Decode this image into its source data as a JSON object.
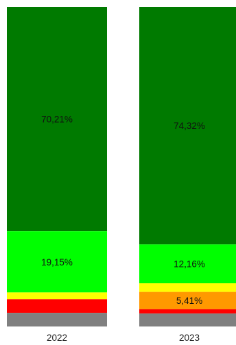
{
  "chart_data": {
    "type": "bar",
    "stacked": true,
    "percent": true,
    "categories": [
      "2022",
      "2023"
    ],
    "series": [
      {
        "color": "#007A00",
        "values": [
          70.21,
          74.32
        ],
        "labels": [
          "70,21%",
          "74,32%"
        ]
      },
      {
        "color": "#00FF00",
        "values": [
          19.15,
          12.16
        ],
        "labels": [
          "19,15%",
          "12,16%"
        ]
      },
      {
        "color": "#FFFF00",
        "values": [
          2.13,
          2.7
        ],
        "labels": [
          "",
          ""
        ]
      },
      {
        "color": "#FF9900",
        "values": [
          0,
          5.41
        ],
        "labels": [
          "",
          "5,41%"
        ]
      },
      {
        "color": "#FF0000",
        "values": [
          4.26,
          1.35
        ],
        "labels": [
          "",
          ""
        ]
      },
      {
        "color": "#808080",
        "values": [
          4.26,
          4.05
        ],
        "labels": [
          "",
          ""
        ]
      }
    ],
    "ylim": [
      0,
      100
    ],
    "grid": false,
    "legend": "none"
  }
}
